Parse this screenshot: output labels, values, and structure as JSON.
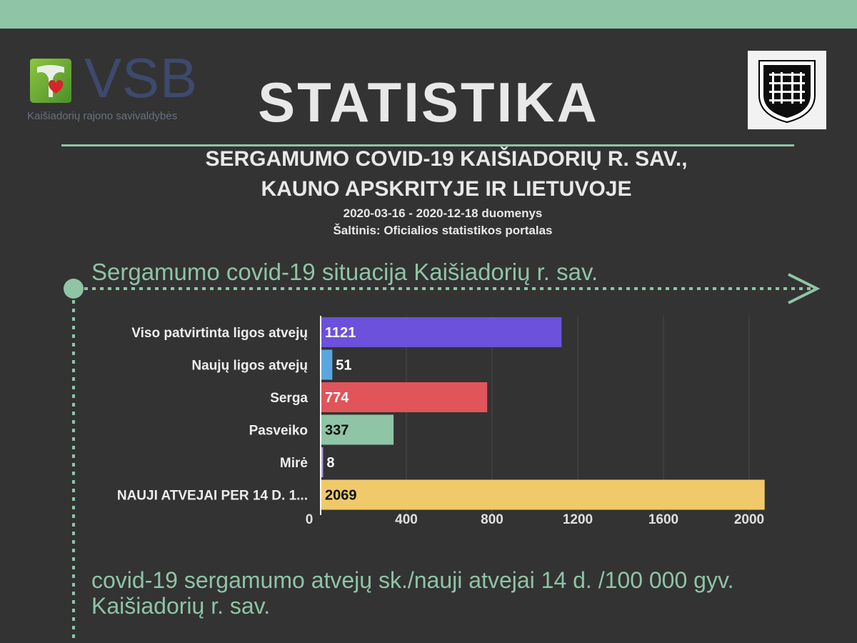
{
  "logo": {
    "text": "VSB",
    "subtitle": "Kaišiadorių rajono savivaldybės"
  },
  "page": {
    "title": "STATISTIKA",
    "subtitle_line1": "SERGAMUMO COVID-19 KAIŠIADORIŲ R. SAV.,",
    "subtitle_line2": "KAUNO APSKRITYJE IR LIETUVOJE",
    "date_range": "2020-03-16 - 2020-12-18  duomenys",
    "source": "Šaltinis: Oficialios statistikos portalas"
  },
  "section1": {
    "title": "Sergamumo covid-19 situacija Kaišiadorių r. sav."
  },
  "section2": {
    "line1": "covid-19 sergamumo atvejų sk./nauji atvejai 14 d. /100 000 gyv.",
    "line2": "Kaišiadorių r. sav."
  },
  "colors": {
    "accent": "#8fc4a6",
    "background": "#333333",
    "top_bar": "#8fc4a6"
  },
  "chart_data": {
    "type": "bar",
    "orientation": "horizontal",
    "categories": [
      "Viso patvirtinta ligos atvejų",
      "Naujų ligos atvejų",
      "Serga",
      "Pasveiko",
      "Mirė",
      "NAUJI ATVEJAI PER 14 D. 1..."
    ],
    "values": [
      1121,
      51,
      774,
      337,
      8,
      2069
    ],
    "value_labels": [
      "1121",
      "51",
      "774",
      "337",
      "8",
      "2069"
    ],
    "colors": [
      "#6b51db",
      "#5aa7e0",
      "#e0545a",
      "#8fc4a6",
      "#b49cd8",
      "#f0c96a"
    ],
    "xlim": [
      0,
      2000
    ],
    "xticks": [
      0,
      400,
      800,
      1200,
      1600,
      2000
    ],
    "xtick_labels": [
      "0",
      "400",
      "800",
      "1200",
      "1600",
      "2000"
    ],
    "grid": true,
    "legend": "none"
  }
}
